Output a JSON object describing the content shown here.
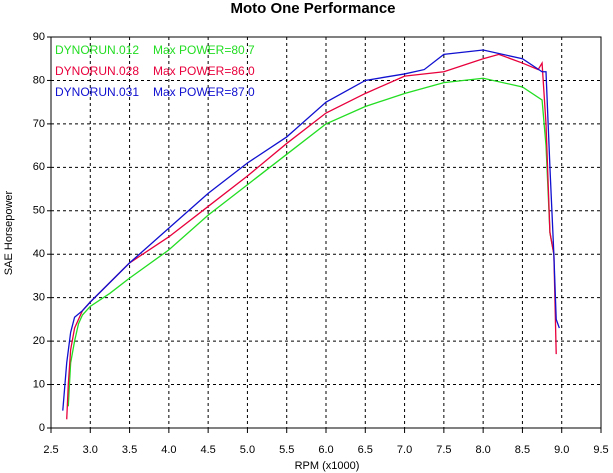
{
  "chart_data": {
    "type": "line",
    "title": "Moto One Performance",
    "xlabel": "RPM (x1000)",
    "ylabel": "SAE Horsepower",
    "xlim": [
      2.5,
      9.5
    ],
    "xticks": [
      2.5,
      {
        "value": 3,
        "label": "3.0"
      },
      3.5,
      {
        "value": 4,
        "label": "4.0"
      },
      4.5,
      {
        "value": 5,
        "label": "5.0"
      },
      5.5,
      {
        "value": 6,
        "label": "6.0"
      },
      6.5,
      {
        "value": 7,
        "label": "7.0"
      },
      7.5,
      {
        "value": 8,
        "label": "8.0"
      },
      8.5,
      {
        "value": 9,
        "label": "9.0"
      },
      9.5
    ],
    "ylim": [
      0,
      90
    ],
    "yticks": [
      0,
      10,
      20,
      30,
      40,
      50,
      60,
      70,
      80,
      90
    ],
    "grid": true,
    "legend": "top-left",
    "series": [
      {
        "name": "DYNORUN.012",
        "max_label": "Max POWER=80.7",
        "color": "#22dd22",
        "x": [
          2.72,
          2.75,
          2.8,
          2.85,
          2.9,
          3.0,
          3.25,
          3.5,
          4.0,
          4.5,
          5.0,
          5.5,
          6.0,
          6.5,
          7.0,
          7.5,
          8.0,
          8.5,
          8.75,
          8.8,
          8.85,
          8.9
        ],
        "values": [
          5,
          15,
          20,
          24,
          26,
          28,
          31,
          34.5,
          41,
          49,
          56,
          63,
          70,
          74,
          77,
          79.5,
          80.5,
          78.5,
          75.5,
          65,
          45,
          40
        ]
      },
      {
        "name": "DYNORUN.028",
        "max_label": "Max POWER=86.0",
        "color": "#e8003c",
        "x": [
          2.7,
          2.72,
          2.75,
          2.8,
          2.9,
          3.0,
          3.5,
          4.0,
          4.5,
          5.0,
          5.5,
          6.0,
          6.5,
          7.0,
          7.5,
          8.0,
          8.2,
          8.5,
          8.7,
          8.75,
          8.8,
          8.85,
          8.9,
          8.93
        ],
        "values": [
          2,
          10,
          18,
          23,
          27,
          29,
          38,
          44,
          51,
          58,
          65.5,
          72.5,
          77,
          81,
          82,
          85,
          86,
          84,
          82.5,
          84,
          70,
          45,
          40,
          17
        ]
      },
      {
        "name": "DYNORUN.031",
        "max_label": "Max POWER=87.0",
        "color": "#1010d0",
        "x": [
          2.65,
          2.7,
          2.75,
          2.8,
          2.9,
          3.0,
          3.5,
          4.0,
          4.5,
          5.0,
          5.5,
          6.0,
          6.5,
          7.0,
          7.25,
          7.5,
          8.0,
          8.5,
          8.75,
          8.8,
          8.85,
          8.9,
          8.93,
          8.97
        ],
        "values": [
          4,
          15,
          22,
          25.5,
          27,
          29,
          38,
          46,
          54,
          61,
          67,
          75,
          80,
          81.5,
          82.5,
          86,
          87,
          85,
          82,
          82,
          60,
          40,
          25,
          23
        ]
      }
    ]
  }
}
